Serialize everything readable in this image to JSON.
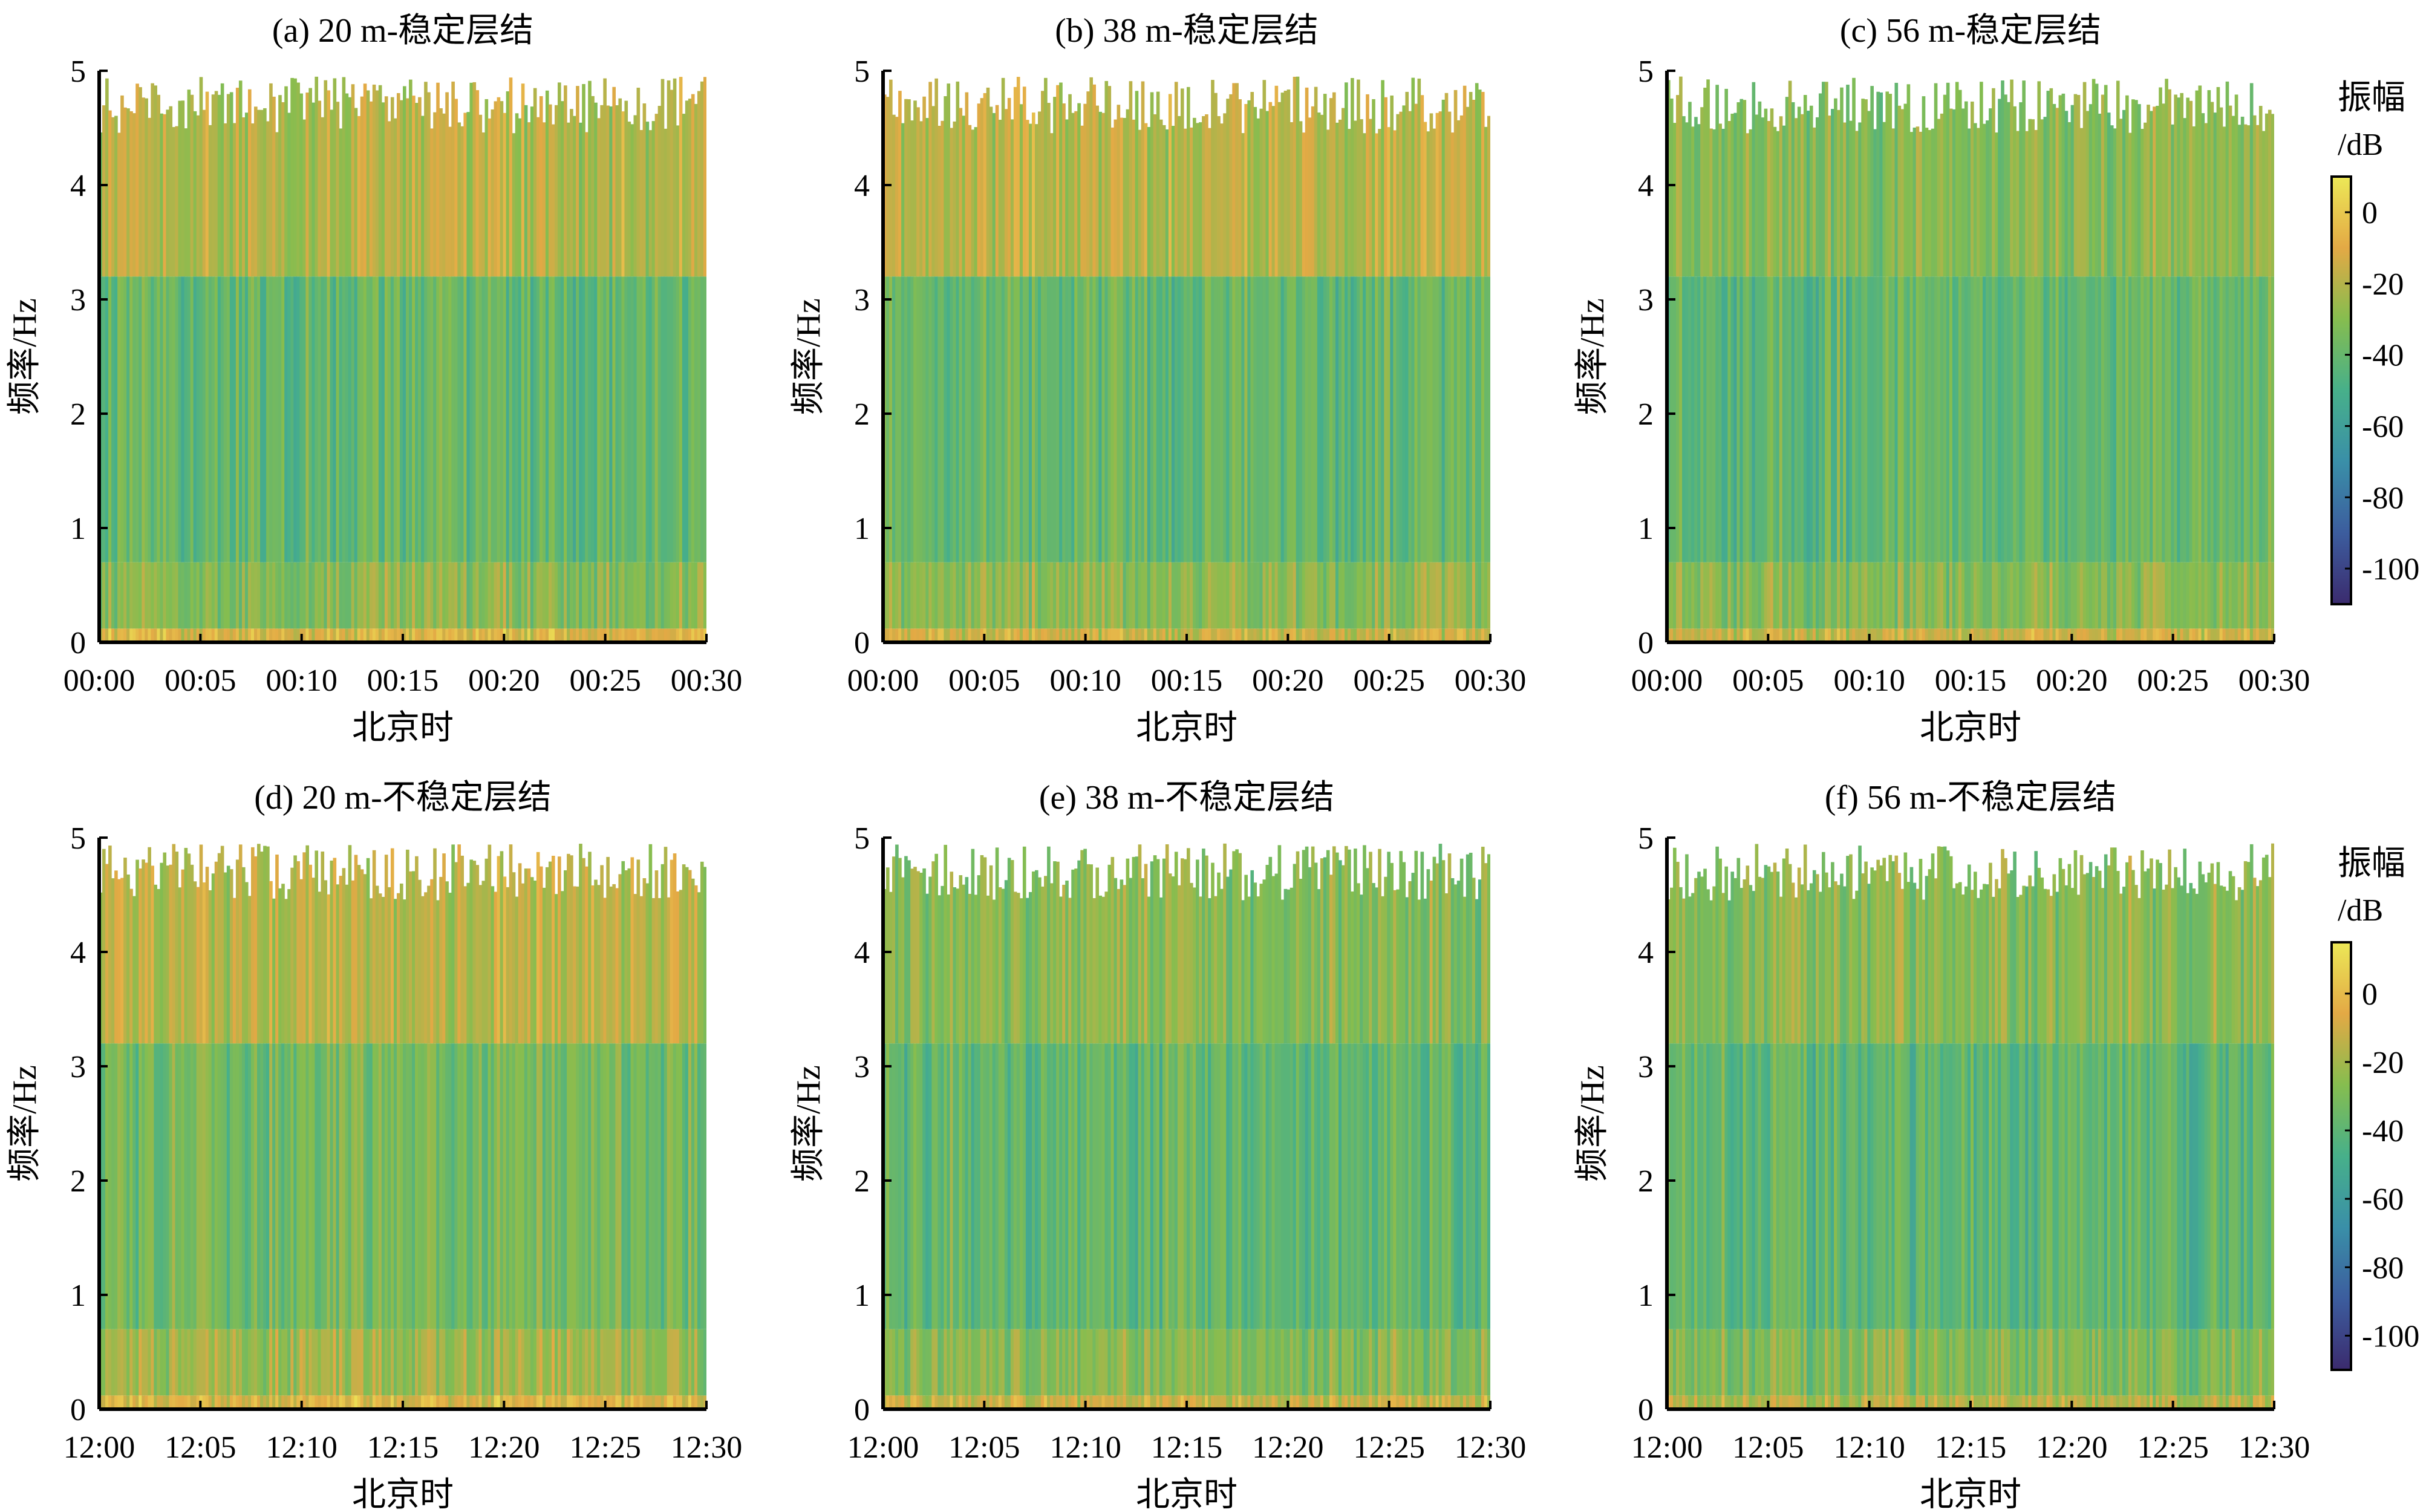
{
  "chart_data": [
    {
      "type": "heatmap",
      "title": "(a) 20 m-稳定层结",
      "xlabel": "北京时",
      "ylabel": "频率/Hz",
      "ylim": [
        0,
        5
      ],
      "y_ticks": [
        "0",
        "1",
        "2",
        "3",
        "4",
        "5"
      ],
      "x_ticks": [
        "00:00",
        "00:05",
        "00:10",
        "00:15",
        "00:20",
        "00:25",
        "00:30"
      ],
      "xlim": [
        "00:00",
        "00:30"
      ],
      "amplitude_dB": {
        "typical": -40,
        "near_zero_freq": -10,
        "upper_band": -20
      }
    },
    {
      "type": "heatmap",
      "title": "(b) 38 m-稳定层结",
      "xlabel": "北京时",
      "ylabel": "频率/Hz",
      "ylim": [
        0,
        5
      ],
      "y_ticks": [
        "0",
        "1",
        "2",
        "3",
        "4",
        "5"
      ],
      "x_ticks": [
        "00:00",
        "00:05",
        "00:10",
        "00:15",
        "00:20",
        "00:25",
        "00:30"
      ],
      "xlim": [
        "00:00",
        "00:30"
      ],
      "amplitude_dB": {
        "typical": -40,
        "near_zero_freq": -15,
        "upper_band": -20
      }
    },
    {
      "type": "heatmap",
      "title": "(c) 56 m-稳定层结",
      "xlabel": "北京时",
      "ylabel": "频率/Hz",
      "ylim": [
        0,
        5
      ],
      "y_ticks": [
        "0",
        "1",
        "2",
        "3",
        "4",
        "5"
      ],
      "x_ticks": [
        "00:00",
        "00:05",
        "00:10",
        "00:15",
        "00:20",
        "00:25",
        "00:30"
      ],
      "xlim": [
        "00:00",
        "00:30"
      ],
      "amplitude_dB": {
        "typical": -40,
        "near_zero_freq": -15,
        "upper_band": -30
      }
    },
    {
      "type": "heatmap",
      "title": "(d) 20 m-不稳定层结",
      "xlabel": "北京时",
      "ylabel": "频率/Hz",
      "ylim": [
        0,
        5
      ],
      "y_ticks": [
        "0",
        "1",
        "2",
        "3",
        "4",
        "5"
      ],
      "x_ticks": [
        "12:00",
        "12:05",
        "12:10",
        "12:15",
        "12:20",
        "12:25",
        "12:30"
      ],
      "xlim": [
        "12:00",
        "12:30"
      ],
      "amplitude_dB": {
        "typical": -35,
        "near_zero_freq": -10,
        "upper_band": -20
      }
    },
    {
      "type": "heatmap",
      "title": "(e) 38 m-不稳定层结",
      "xlabel": "北京时",
      "ylabel": "频率/Hz",
      "ylim": [
        0,
        5
      ],
      "y_ticks": [
        "0",
        "1",
        "2",
        "3",
        "4",
        "5"
      ],
      "x_ticks": [
        "12:00",
        "12:05",
        "12:10",
        "12:15",
        "12:20",
        "12:25",
        "12:30"
      ],
      "xlim": [
        "12:00",
        "12:30"
      ],
      "amplitude_dB": {
        "typical": -40,
        "near_zero_freq": -15,
        "upper_band": -30
      }
    },
    {
      "type": "heatmap",
      "title": "(f) 56 m-不稳定层结",
      "xlabel": "北京时",
      "ylabel": "频率/Hz",
      "ylim": [
        0,
        5
      ],
      "y_ticks": [
        "0",
        "1",
        "2",
        "3",
        "4",
        "5"
      ],
      "x_ticks": [
        "12:00",
        "12:05",
        "12:10",
        "12:15",
        "12:20",
        "12:25",
        "12:30"
      ],
      "xlim": [
        "12:00",
        "12:30"
      ],
      "amplitude_dB": {
        "typical": -42,
        "near_zero_freq": -20,
        "upper_band": -30
      }
    }
  ],
  "colorbars": [
    {
      "title_line1": "振幅",
      "title_line2": "/dB",
      "range": [
        -110,
        10
      ],
      "ticks": [
        {
          "value": 0,
          "label": "0"
        },
        {
          "value": -20,
          "label": "-20"
        },
        {
          "value": -40,
          "label": "-40"
        },
        {
          "value": -60,
          "label": "-60"
        },
        {
          "value": -80,
          "label": "-80"
        },
        {
          "value": -100,
          "label": "-100"
        }
      ]
    },
    {
      "title_line1": "振幅",
      "title_line2": "/dB",
      "range": [
        -110,
        15
      ],
      "ticks": [
        {
          "value": 0,
          "label": "0"
        },
        {
          "value": -20,
          "label": "-20"
        },
        {
          "value": -40,
          "label": "-40"
        },
        {
          "value": -60,
          "label": "-60"
        },
        {
          "value": -80,
          "label": "-80"
        },
        {
          "value": -100,
          "label": "-100"
        }
      ]
    }
  ],
  "colormap": [
    "#3b2b6e",
    "#3c5d9e",
    "#3a8fa8",
    "#47b08a",
    "#86bd4f",
    "#e3a945",
    "#ece857"
  ]
}
